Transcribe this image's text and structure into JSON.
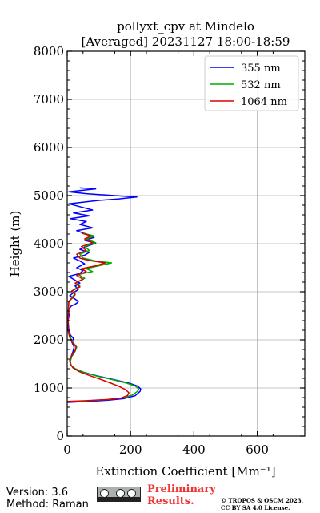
{
  "chart_data": {
    "type": "line",
    "title": "pollyxt_cpv at Mindelo",
    "subtitle": "[Averaged] 20231127 18:00-18:59",
    "xlabel": "Extinction Coefficient [Mm⁻¹]",
    "ylabel": "Height (m)",
    "xlim": [
      0,
      750
    ],
    "ylim": [
      0,
      8000
    ],
    "xticks": [
      0,
      200,
      400,
      600
    ],
    "yticks": [
      0,
      1000,
      2000,
      3000,
      4000,
      5000,
      6000,
      7000,
      8000
    ],
    "grid": true,
    "legend_position": "top-right",
    "series": [
      {
        "name": "355 nm",
        "color": "#0000ff",
        "points": [
          [
            0,
            700
          ],
          [
            60,
            720
          ],
          [
            130,
            745
          ],
          [
            180,
            780
          ],
          [
            215,
            840
          ],
          [
            230,
            930
          ],
          [
            232,
            980
          ],
          [
            222,
            1040
          ],
          [
            195,
            1100
          ],
          [
            150,
            1170
          ],
          [
            95,
            1250
          ],
          [
            50,
            1330
          ],
          [
            25,
            1400
          ],
          [
            12,
            1470
          ],
          [
            8,
            1550
          ],
          [
            12,
            1650
          ],
          [
            18,
            1750
          ],
          [
            22,
            1850
          ],
          [
            15,
            1950
          ],
          [
            20,
            2030
          ],
          [
            10,
            2100
          ],
          [
            5,
            2200
          ],
          [
            3,
            2400
          ],
          [
            6,
            2520
          ],
          [
            4,
            2620
          ],
          [
            12,
            2700
          ],
          [
            30,
            2760
          ],
          [
            35,
            2800
          ],
          [
            22,
            2860
          ],
          [
            8,
            2920
          ],
          [
            20,
            2980
          ],
          [
            35,
            3050
          ],
          [
            25,
            3120
          ],
          [
            40,
            3180
          ],
          [
            20,
            3260
          ],
          [
            5,
            3320
          ],
          [
            40,
            3380
          ],
          [
            50,
            3440
          ],
          [
            30,
            3500
          ],
          [
            55,
            3580
          ],
          [
            40,
            3640
          ],
          [
            20,
            3700
          ],
          [
            55,
            3760
          ],
          [
            70,
            3820
          ],
          [
            40,
            3880
          ],
          [
            60,
            3940
          ],
          [
            90,
            4010
          ],
          [
            55,
            4070
          ],
          [
            85,
            4130
          ],
          [
            60,
            4200
          ],
          [
            30,
            4270
          ],
          [
            80,
            4330
          ],
          [
            40,
            4400
          ],
          [
            60,
            4460
          ],
          [
            10,
            4520
          ],
          [
            70,
            4580
          ],
          [
            20,
            4640
          ],
          [
            80,
            4700
          ],
          [
            40,
            4770
          ],
          [
            5,
            4830
          ],
          [
            60,
            4870
          ],
          [
            100,
            4900
          ],
          [
            160,
            4930
          ],
          [
            220,
            4970
          ],
          [
            150,
            5000
          ],
          [
            60,
            5040
          ],
          [
            5,
            5080
          ],
          [
            90,
            5140
          ],
          [
            40,
            5160
          ]
        ]
      },
      {
        "name": "532 nm",
        "color": "#00aa00",
        "points": [
          [
            0,
            710
          ],
          [
            55,
            730
          ],
          [
            120,
            755
          ],
          [
            170,
            790
          ],
          [
            205,
            850
          ],
          [
            222,
            930
          ],
          [
            226,
            980
          ],
          [
            215,
            1040
          ],
          [
            188,
            1100
          ],
          [
            145,
            1170
          ],
          [
            92,
            1250
          ],
          [
            50,
            1330
          ],
          [
            25,
            1400
          ],
          [
            12,
            1470
          ],
          [
            10,
            1560
          ],
          [
            15,
            1660
          ],
          [
            25,
            1760
          ],
          [
            30,
            1850
          ],
          [
            18,
            1950
          ],
          [
            10,
            2050
          ],
          [
            5,
            2150
          ],
          [
            2,
            2250
          ],
          [
            5,
            2800
          ],
          [
            15,
            2880
          ],
          [
            25,
            2960
          ],
          [
            20,
            3040
          ],
          [
            40,
            3120
          ],
          [
            30,
            3200
          ],
          [
            55,
            3280
          ],
          [
            35,
            3360
          ],
          [
            80,
            3420
          ],
          [
            60,
            3480
          ],
          [
            100,
            3540
          ],
          [
            140,
            3600
          ],
          [
            90,
            3640
          ],
          [
            50,
            3700
          ],
          [
            40,
            3780
          ],
          [
            70,
            3860
          ],
          [
            55,
            3940
          ],
          [
            90,
            4020
          ],
          [
            60,
            4100
          ],
          [
            85,
            4160
          ],
          [
            50,
            4220
          ]
        ]
      },
      {
        "name": "1064 nm",
        "color": "#dd0000",
        "points": [
          [
            0,
            720
          ],
          [
            60,
            735
          ],
          [
            130,
            760
          ],
          [
            170,
            790
          ],
          [
            190,
            840
          ],
          [
            195,
            900
          ],
          [
            185,
            960
          ],
          [
            165,
            1030
          ],
          [
            138,
            1100
          ],
          [
            105,
            1180
          ],
          [
            70,
            1260
          ],
          [
            38,
            1340
          ],
          [
            18,
            1420
          ],
          [
            10,
            1500
          ],
          [
            8,
            1580
          ],
          [
            15,
            1680
          ],
          [
            25,
            1780
          ],
          [
            28,
            1860
          ],
          [
            15,
            1950
          ],
          [
            8,
            2050
          ],
          [
            4,
            2150
          ],
          [
            2,
            2250
          ],
          [
            5,
            2800
          ],
          [
            15,
            2860
          ],
          [
            25,
            2940
          ],
          [
            15,
            3020
          ],
          [
            40,
            3100
          ],
          [
            25,
            3180
          ],
          [
            50,
            3260
          ],
          [
            30,
            3340
          ],
          [
            60,
            3420
          ],
          [
            45,
            3480
          ],
          [
            90,
            3540
          ],
          [
            120,
            3600
          ],
          [
            70,
            3650
          ],
          [
            40,
            3700
          ],
          [
            30,
            3780
          ],
          [
            60,
            3860
          ],
          [
            45,
            3940
          ],
          [
            80,
            4020
          ],
          [
            55,
            4100
          ],
          [
            75,
            4160
          ],
          [
            45,
            4220
          ]
        ]
      }
    ]
  },
  "footer": {
    "version": "Version: 3.6",
    "method": "Method: Raman",
    "preliminary_line1": "Preliminary",
    "preliminary_line2": "Results.",
    "copyright_line1": "© TROPOS & OSCM 2023.",
    "copyright_line2": "CC BY SA 4.0 License."
  }
}
